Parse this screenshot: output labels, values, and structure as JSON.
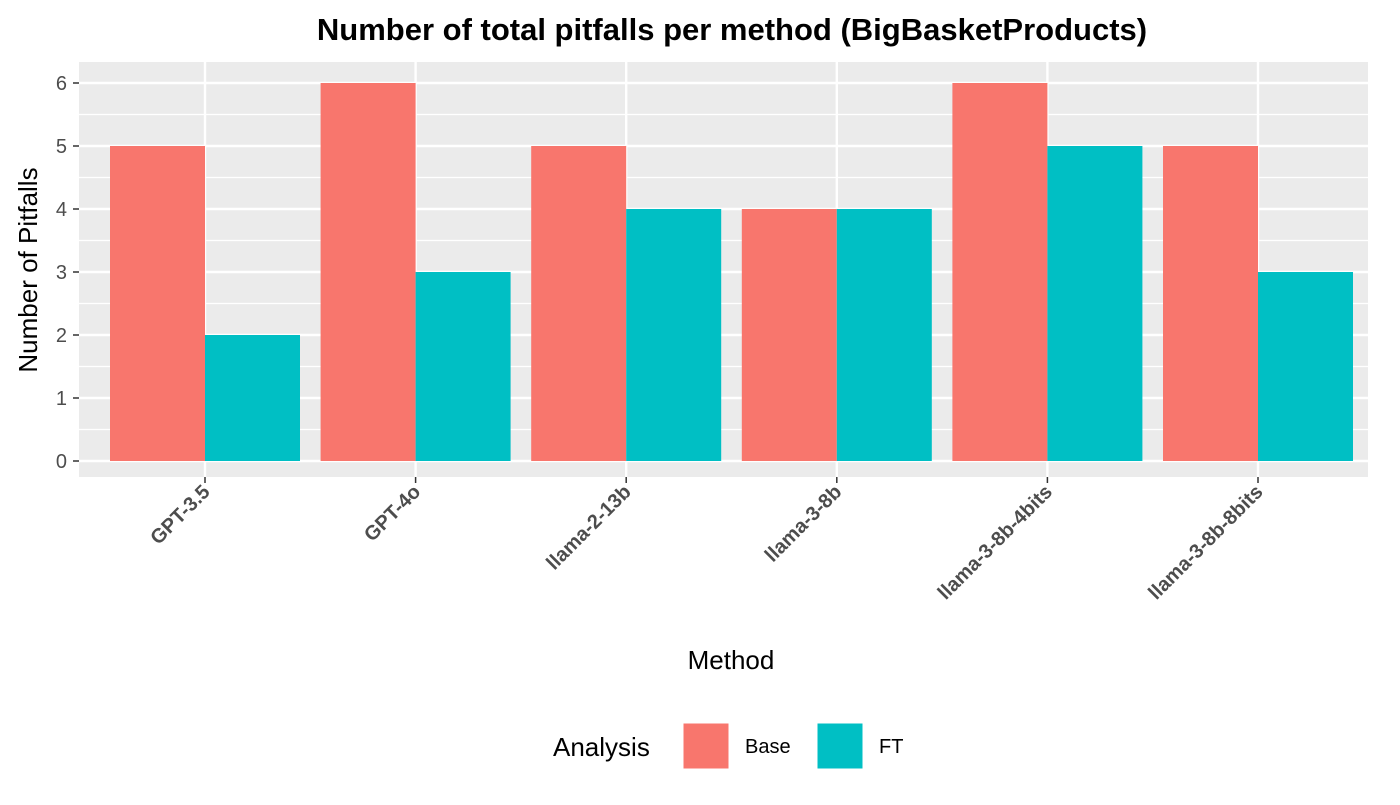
{
  "chart_data": {
    "type": "bar",
    "title": "Number of total pitfalls per method (BigBasketProducts)",
    "xlabel": "Method",
    "ylabel": "Number of Pitfalls",
    "categories": [
      "GPT-3.5",
      "GPT-4o",
      "llama-2-13b",
      "llama-3-8b",
      "llama-3-8b-4bits",
      "llama-3-8b-8bits"
    ],
    "series": [
      {
        "name": "Base",
        "color": "#F8766D",
        "values": [
          5,
          6,
          5,
          4,
          6,
          5
        ]
      },
      {
        "name": "FT",
        "color": "#00BFC4",
        "values": [
          2,
          3,
          4,
          4,
          5,
          3
        ]
      }
    ],
    "ylim": [
      0,
      6
    ],
    "yticks": [
      "0",
      "1",
      "2",
      "3",
      "4",
      "5",
      "6"
    ],
    "grid": true,
    "legend": {
      "title": "Analysis",
      "position": "bottom"
    },
    "panel_color": "#EBEBEB",
    "gridline_color": "#FFFFFF"
  }
}
